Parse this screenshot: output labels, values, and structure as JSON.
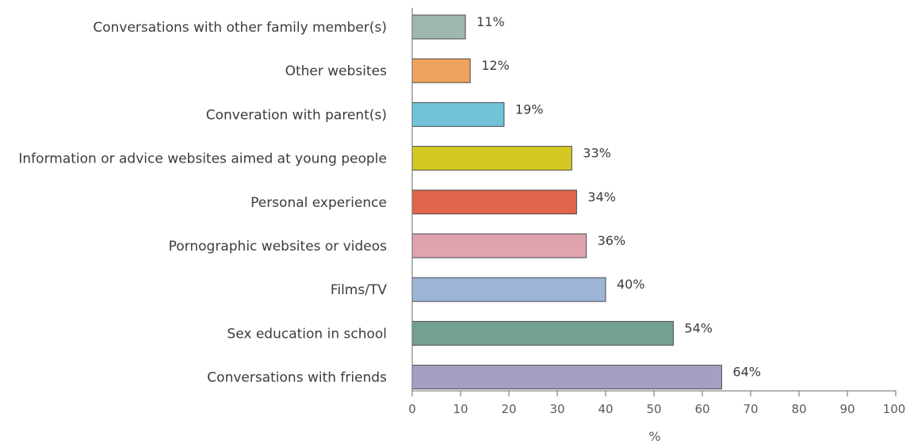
{
  "chart_data": {
    "type": "bar",
    "orientation": "horizontal",
    "categories": [
      "Conversations with other family member(s)",
      "Other websites",
      "Converation with parent(s)",
      "Information or advice websites aimed at young people",
      "Personal experience",
      "Pornographic websites or videos",
      "Films/TV",
      "Sex education in school",
      "Conversations with friends"
    ],
    "values": [
      11,
      12,
      19,
      33,
      34,
      36,
      40,
      54,
      64
    ],
    "value_labels": [
      "11%",
      "12%",
      "19%",
      "33%",
      "34%",
      "36%",
      "40%",
      "54%",
      "64%"
    ],
    "colors": [
      "#9db8ad",
      "#eda35c",
      "#72c3d7",
      "#d4c823",
      "#e0654a",
      "#dfa4ad",
      "#9cb4d6",
      "#72a192",
      "#a69fc3"
    ],
    "xlim": [
      0,
      100
    ],
    "xticks": [
      0,
      10,
      20,
      30,
      40,
      50,
      60,
      70,
      80,
      90,
      100
    ],
    "xlabel": "%",
    "title": "",
    "grid": false,
    "legend": "none"
  }
}
